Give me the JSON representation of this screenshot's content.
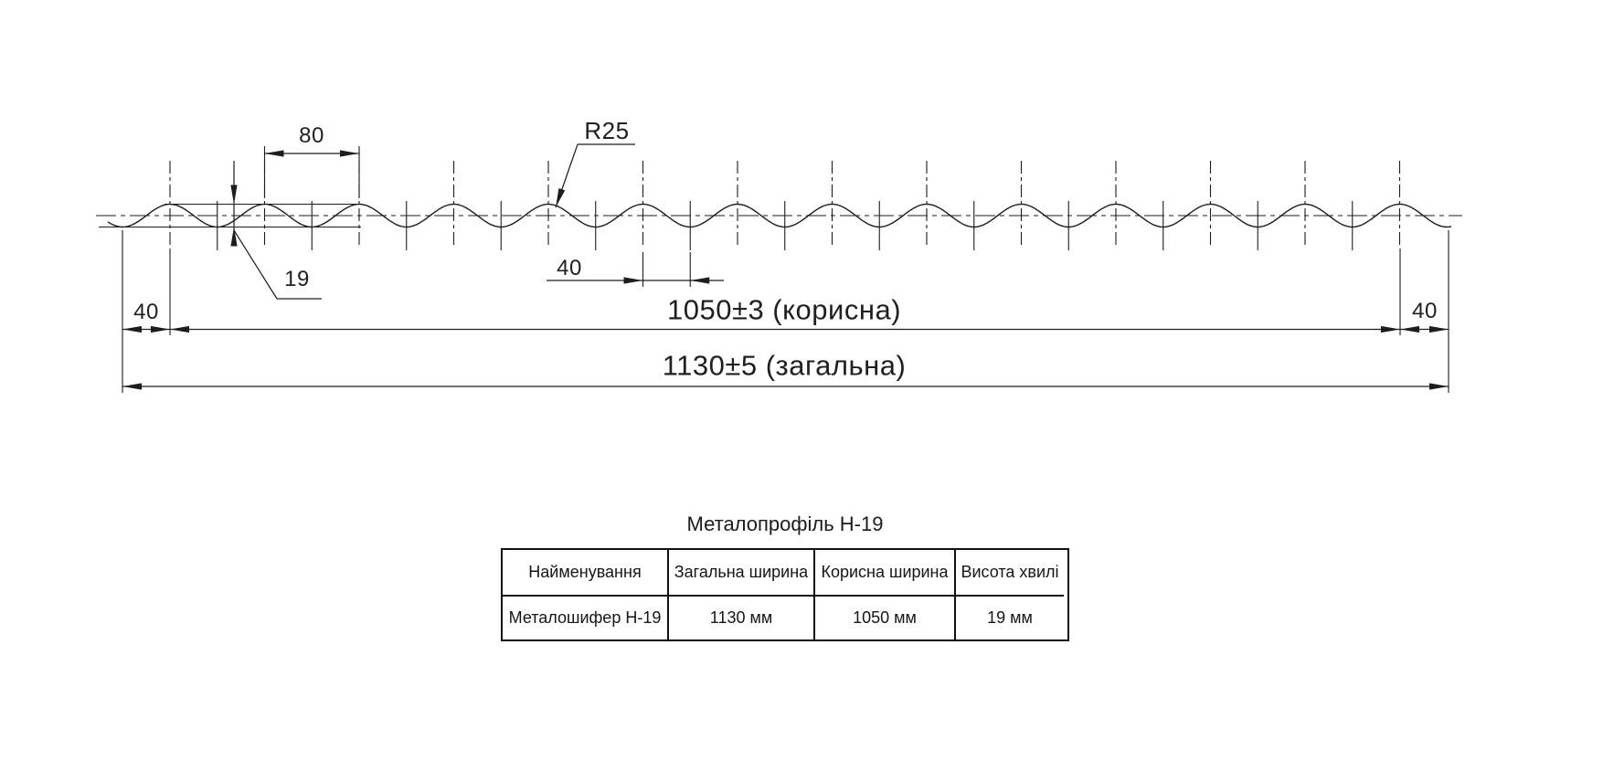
{
  "title": "Металопрофіль Н-19",
  "drawing": {
    "description": "wave profile cross-section",
    "dimensions": {
      "wave_pitch": "80",
      "wave_radius": "R25",
      "wave_height": "19",
      "half_pitch": "40",
      "edge_left": "40",
      "edge_right": "40",
      "useful_width": "1050±3 (корисна)",
      "overall_width": "1130±5 (загальна)"
    }
  },
  "table": {
    "headers": [
      "Найменування",
      "Загальна ширина",
      "Корисна ширина",
      "Висота хвилі"
    ],
    "rows": [
      [
        "Металошифер Н-19",
        "1130 мм",
        "1050 мм",
        "19 мм"
      ]
    ]
  },
  "colors": {
    "background": "#ffffff",
    "line": "#1d1d1d",
    "text": "#1f1f1f"
  }
}
